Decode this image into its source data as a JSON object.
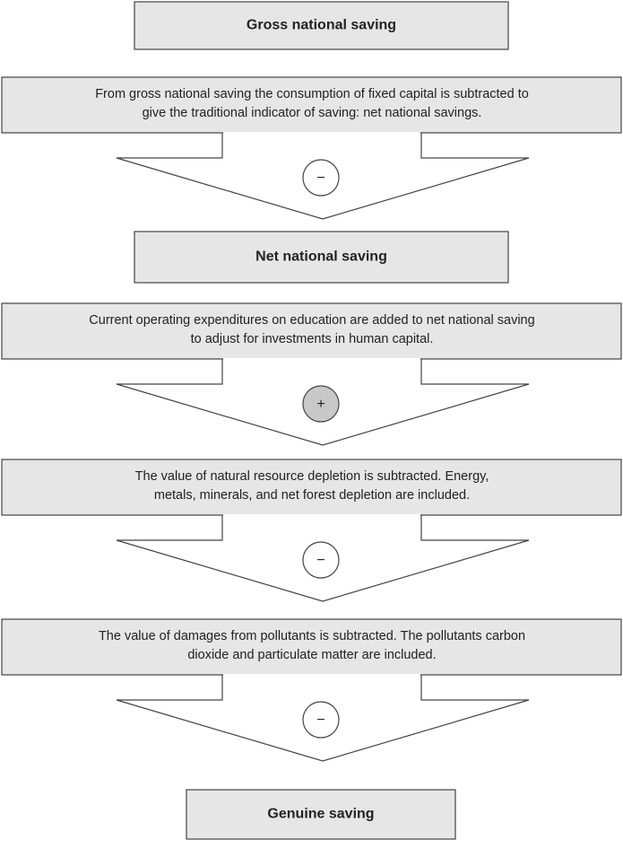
{
  "boxes": [
    "Gross national saving",
    "Net national saving",
    "Genuine saving"
  ],
  "steps": [
    {
      "text_lines": [
        "From gross national saving the consumption of fixed capital is subtracted to",
        "give the traditional indicator of saving: net national savings."
      ],
      "sign": "−"
    },
    {
      "text_lines": [
        "Current operating expenditures on education are added to net national saving",
        "to adjust for investments in human capital."
      ],
      "sign": "+"
    },
    {
      "text_lines": [
        "The value of natural resource depletion is subtracted. Energy,",
        "metals, minerals, and net forest depletion are included."
      ],
      "sign": "−"
    },
    {
      "text_lines": [
        "The value of damages from pollutants is subtracted. The pollutants carbon",
        "dioxide and particulate matter are included."
      ],
      "sign": "−"
    }
  ]
}
